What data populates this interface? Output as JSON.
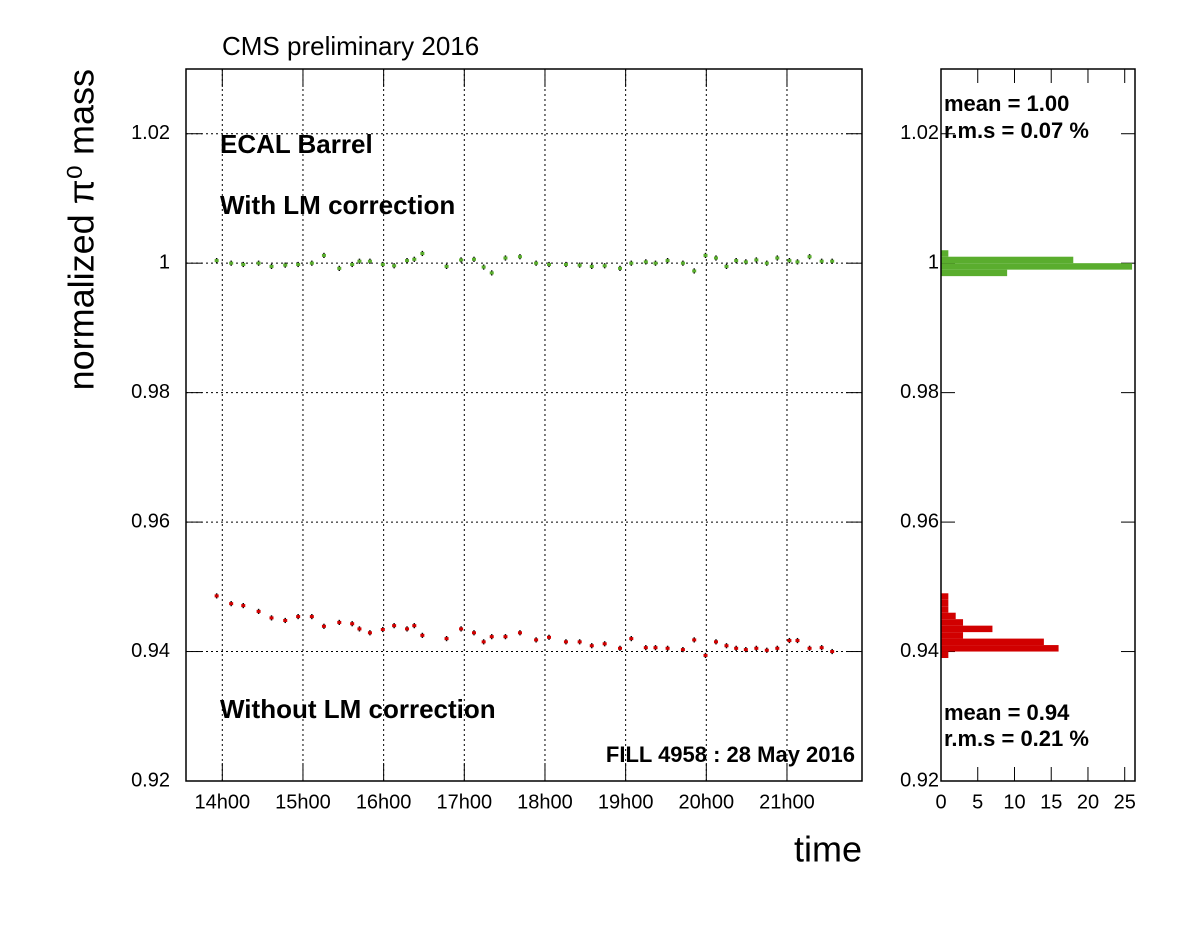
{
  "chart_data": [
    {
      "type": "scatter",
      "title": "CMS preliminary 2016",
      "xlabel": "time",
      "ylabel": "normalized π⁰ mass",
      "annotations": [
        {
          "text": "ECAL Barrel",
          "color": "#000000"
        },
        {
          "text": "With LM correction",
          "color": "#5aad2e"
        },
        {
          "text": "Without LM correction",
          "color": "#d10000"
        },
        {
          "text": "FILL 4958 : 28 May 2016",
          "color": "#000000"
        }
      ],
      "x": [
        13.93,
        14.11,
        14.26,
        14.45,
        14.61,
        14.78,
        14.94,
        15.11,
        15.26,
        15.45,
        15.61,
        15.7,
        15.83,
        15.99,
        16.13,
        16.29,
        16.38,
        16.48,
        16.78,
        16.96,
        17.12,
        17.24,
        17.34,
        17.51,
        17.69,
        17.89,
        18.05,
        18.26,
        18.43,
        18.58,
        18.74,
        18.93,
        19.07,
        19.25,
        19.37,
        19.52,
        19.71,
        19.85,
        19.99,
        20.12,
        20.25,
        20.37,
        20.49,
        20.62,
        20.75,
        20.88,
        21.03,
        21.13,
        21.28,
        21.43,
        21.56
      ],
      "series": [
        {
          "color": "#5aad2e",
          "error": 0.0004,
          "values": [
            1.0004,
            1.0,
            0.9998,
            1.0,
            0.9995,
            0.9997,
            0.9998,
            1.0,
            1.0012,
            0.9992,
            0.9998,
            1.0003,
            1.0003,
            0.9998,
            0.9996,
            1.0004,
            1.0006,
            1.0015,
            0.9995,
            1.0005,
            1.0006,
            0.9994,
            0.9985,
            1.0008,
            1.001,
            1.0,
            0.9998,
            0.9998,
            0.9997,
            0.9995,
            0.9996,
            0.9992,
            1.0,
            1.0002,
            1.0,
            1.0004,
            1.0,
            0.9988,
            1.0012,
            1.0008,
            0.9995,
            1.0004,
            1.0002,
            1.0005,
            1.0,
            1.0008,
            1.0004,
            1.0002,
            1.001,
            1.0003,
            1.0003
          ]
        },
        {
          "color": "#d10000",
          "error": 0.0004,
          "values": [
            0.9486,
            0.9474,
            0.9471,
            0.9462,
            0.9452,
            0.9448,
            0.9454,
            0.9454,
            0.9439,
            0.9445,
            0.9443,
            0.9435,
            0.9429,
            0.9434,
            0.944,
            0.9435,
            0.944,
            0.9425,
            0.942,
            0.9435,
            0.9429,
            0.9415,
            0.9423,
            0.9423,
            0.9429,
            0.9418,
            0.9422,
            0.9415,
            0.9415,
            0.9409,
            0.9412,
            0.9405,
            0.942,
            0.9406,
            0.9406,
            0.9405,
            0.9403,
            0.9418,
            0.9394,
            0.9415,
            0.9409,
            0.9405,
            0.9403,
            0.9405,
            0.9402,
            0.9405,
            0.9417,
            0.9417,
            0.9405,
            0.9406,
            0.94
          ]
        }
      ],
      "xlim": [
        13.55,
        21.93
      ],
      "xticks": [
        {
          "value": 14,
          "label": "14h00"
        },
        {
          "value": 15,
          "label": "15h00"
        },
        {
          "value": 16,
          "label": "16h00"
        },
        {
          "value": 17,
          "label": "17h00"
        },
        {
          "value": 18,
          "label": "18h00"
        },
        {
          "value": 19,
          "label": "19h00"
        },
        {
          "value": 20,
          "label": "20h00"
        },
        {
          "value": 21,
          "label": "21h00"
        }
      ],
      "ylim": [
        0.92,
        1.03
      ],
      "yticks": [
        0.92,
        0.94,
        0.96,
        0.98,
        1,
        1.02
      ],
      "grid": true
    },
    {
      "type": "histogram",
      "orientation": "horizontal",
      "annotations": [
        {
          "text": "mean = 1.00",
          "color": "#5aad2e"
        },
        {
          "text": "r.m.s = 0.07 %",
          "color": "#5aad2e"
        },
        {
          "text": "mean = 0.94",
          "color": "#d10000"
        },
        {
          "text": "r.m.s = 0.21 %",
          "color": "#d10000"
        }
      ],
      "series": [
        {
          "color": "#5aad2e",
          "bins": [
            0.998,
            0.999,
            1.0,
            1.001,
            1.002
          ],
          "counts": [
            9,
            26,
            18,
            1
          ]
        },
        {
          "color": "#d10000",
          "bins": [
            0.939,
            0.94,
            0.941,
            0.942,
            0.943,
            0.944,
            0.945,
            0.946,
            0.947,
            0.948,
            0.949
          ],
          "counts": [
            1,
            16,
            14,
            3,
            7,
            3,
            2,
            1,
            1,
            1
          ]
        }
      ],
      "xlim": [
        0,
        26.4
      ],
      "xticks": [
        0,
        5,
        10,
        15,
        20,
        25
      ],
      "ylim": [
        0.92,
        1.03
      ],
      "yticks": [
        0.92,
        0.94,
        0.96,
        0.98,
        1,
        1.02
      ]
    }
  ]
}
